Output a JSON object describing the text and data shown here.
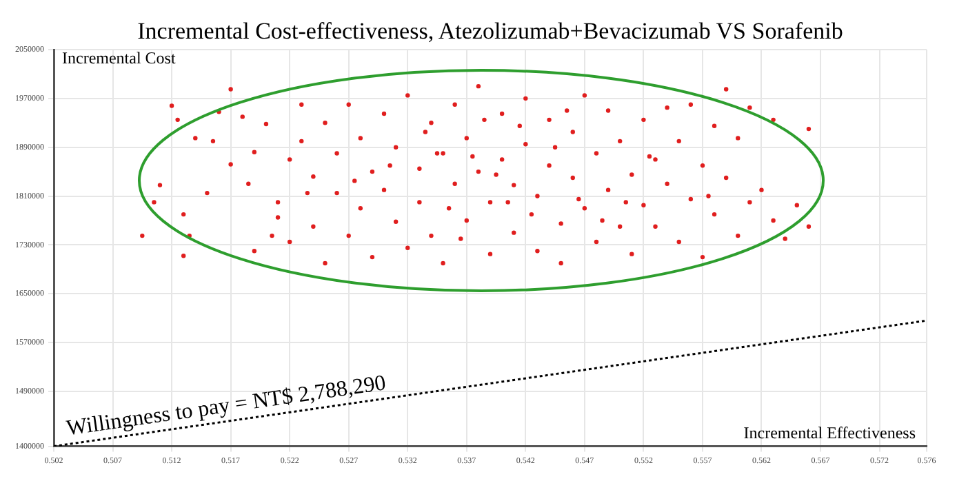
{
  "chart_data": {
    "type": "scatter",
    "title": "Incremental Cost-effectiveness, Atezolizumab+Bevacizumab VS Sorafenib",
    "xlabel": "Incremental Effectiveness",
    "ylabel": "Incremental Cost",
    "xlim": [
      0.502,
      0.576
    ],
    "xticks": [
      0.502,
      0.507,
      0.512,
      0.517,
      0.522,
      0.527,
      0.532,
      0.537,
      0.542,
      0.547,
      0.552,
      0.557,
      0.562,
      0.567,
      0.572,
      0.576
    ],
    "ylim": [
      1400000,
      2050000
    ],
    "yticks": [
      1400000,
      1490000,
      1570000,
      1650000,
      1730000,
      1810000,
      1890000,
      1970000,
      2050000
    ],
    "grid": true,
    "legend": false,
    "marker": "circle",
    "series": [
      {
        "color": "#e01e1e",
        "x": [
          0.5095,
          0.5105,
          0.511,
          0.512,
          0.5125,
          0.513,
          0.513,
          0.5135,
          0.514,
          0.515,
          0.516,
          0.517,
          0.517,
          0.518,
          0.519,
          0.519,
          0.52,
          0.521,
          0.521,
          0.522,
          0.522,
          0.523,
          0.523,
          0.524,
          0.524,
          0.525,
          0.525,
          0.526,
          0.526,
          0.527,
          0.527,
          0.528,
          0.528,
          0.529,
          0.529,
          0.53,
          0.53,
          0.531,
          0.531,
          0.532,
          0.532,
          0.533,
          0.533,
          0.534,
          0.534,
          0.535,
          0.535,
          0.536,
          0.536,
          0.537,
          0.537,
          0.538,
          0.538,
          0.539,
          0.539,
          0.54,
          0.54,
          0.541,
          0.541,
          0.542,
          0.542,
          0.543,
          0.543,
          0.544,
          0.544,
          0.545,
          0.545,
          0.546,
          0.546,
          0.547,
          0.547,
          0.548,
          0.548,
          0.549,
          0.549,
          0.55,
          0.55,
          0.551,
          0.551,
          0.552,
          0.552,
          0.553,
          0.553,
          0.554,
          0.554,
          0.555,
          0.555,
          0.556,
          0.556,
          0.557,
          0.557,
          0.558,
          0.558,
          0.559,
          0.559,
          0.56,
          0.56,
          0.561,
          0.561,
          0.562,
          0.563,
          0.563,
          0.564,
          0.565,
          0.566,
          0.566,
          0.5305,
          0.5355,
          0.5385,
          0.5425,
          0.5445,
          0.5335,
          0.5395,
          0.5465,
          0.5275,
          0.5235,
          0.5185,
          0.5155,
          0.5205,
          0.5345,
          0.5415,
          0.5485,
          0.5505,
          0.5525,
          0.5575,
          0.5365,
          0.5375,
          0.5405,
          0.5455
        ],
        "values": [
          1745000,
          1800000,
          1828000,
          1958000,
          1935000,
          1780000,
          1712000,
          1745000,
          1905000,
          1815000,
          1948000,
          1985000,
          1862000,
          1940000,
          1720000,
          1882000,
          1928000,
          1800000,
          1775000,
          1870000,
          1735000,
          1960000,
          1900000,
          1760000,
          1842000,
          1930000,
          1700000,
          1815000,
          1880000,
          1960000,
          1745000,
          1905000,
          1790000,
          1850000,
          1710000,
          1945000,
          1820000,
          1768000,
          1890000,
          1725000,
          1975000,
          1855000,
          1800000,
          1930000,
          1745000,
          1880000,
          1700000,
          1960000,
          1830000,
          1770000,
          1905000,
          1990000,
          1850000,
          1715000,
          1800000,
          1945000,
          1870000,
          1750000,
          1828000,
          1970000,
          1895000,
          1720000,
          1810000,
          1935000,
          1860000,
          1765000,
          1700000,
          1915000,
          1840000,
          1975000,
          1790000,
          1880000,
          1735000,
          1950000,
          1820000,
          1760000,
          1900000,
          1845000,
          1715000,
          1935000,
          1795000,
          1870000,
          1760000,
          1955000,
          1830000,
          1900000,
          1735000,
          1805000,
          1960000,
          1860000,
          1710000,
          1925000,
          1780000,
          1985000,
          1840000,
          1905000,
          1745000,
          1955000,
          1800000,
          1820000,
          1770000,
          1935000,
          1740000,
          1795000,
          1920000,
          1760000,
          1860000,
          1790000,
          1935000,
          1780000,
          1890000,
          1915000,
          1845000,
          1805000,
          1835000,
          1815000,
          1830000,
          1900000,
          1745000,
          1880000,
          1925000,
          1770000,
          1800000,
          1875000,
          1810000,
          1740000,
          1875000,
          1800000,
          1950000
        ]
      },
      {
        "type": "line",
        "name": "Willingness to pay = NT$ 2,788,290",
        "color": "#000000",
        "line_style": "dotted",
        "marker": "none",
        "x": [
          0.502,
          0.576
        ],
        "values": [
          1400000,
          1606000
        ]
      }
    ]
  }
}
